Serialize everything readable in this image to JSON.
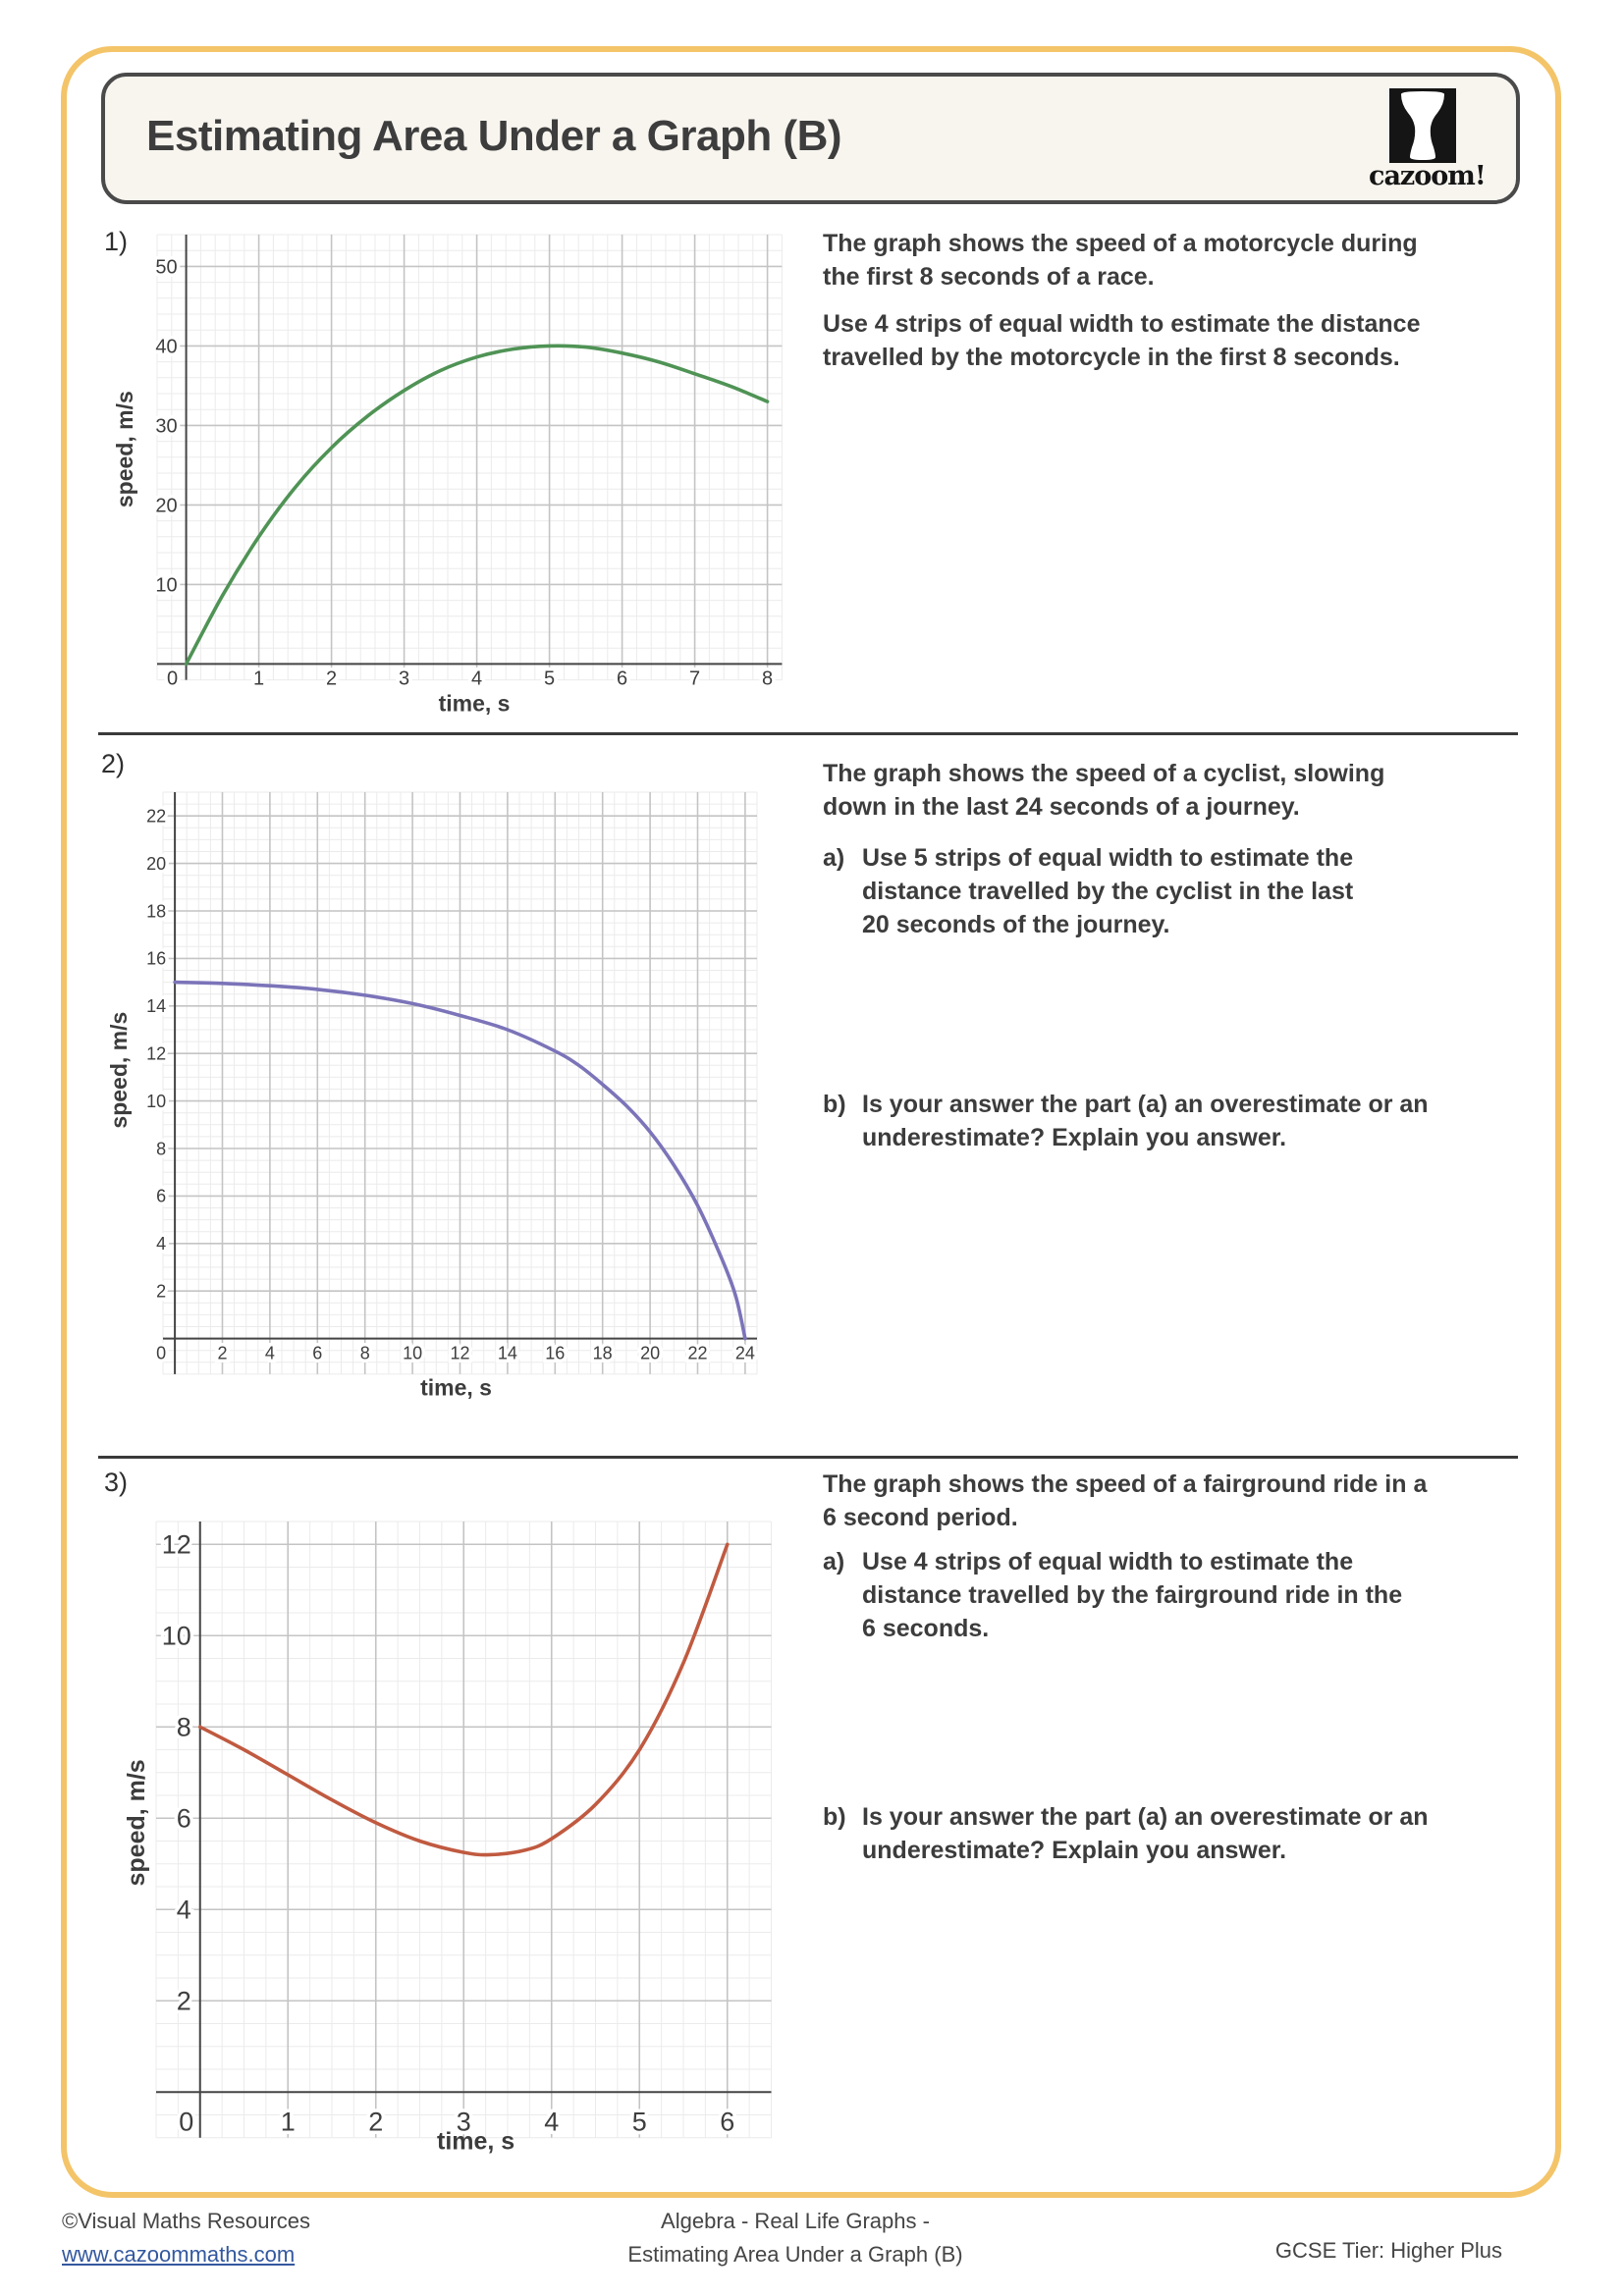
{
  "header": {
    "title": "Estimating Area Under a Graph (B)",
    "logo_text": "cazoom!"
  },
  "questions": [
    {
      "number": "1)",
      "intro": "The graph shows the speed of a motorcycle during\nthe first 8 seconds of a race.",
      "parts": [
        {
          "label": "",
          "text": "Use 4 strips of equal width to estimate the distance\ntravelled by the motorcycle in the first 8 seconds."
        }
      ]
    },
    {
      "number": "2)",
      "intro": "The graph shows the speed of a cyclist, slowing\ndown in the last 24 seconds of a journey.",
      "parts": [
        {
          "label": "a)",
          "text": "Use 5 strips of equal width to estimate the\ndistance travelled by the cyclist in the last\n20 seconds of the journey."
        },
        {
          "label": "b)",
          "text": "Is your answer the part (a) an overestimate or an\nunderestimate? Explain you answer."
        }
      ]
    },
    {
      "number": "3)",
      "intro": "The graph shows the speed of a fairground ride in a\n6 second period.",
      "parts": [
        {
          "label": "a)",
          "text": "Use 4 strips of equal width to estimate the\ndistance travelled by the fairground ride in the\n6 seconds."
        },
        {
          "label": "b)",
          "text": "Is your answer the part (a) an overestimate or an\nunderestimate? Explain you answer."
        }
      ]
    }
  ],
  "footer": {
    "copyright": "©Visual Maths Resources",
    "link": "www.cazoommaths.com",
    "center_line1": "Algebra - Real Life Graphs -",
    "center_line2": "Estimating Area Under a Graph (B)",
    "right": "GCSE Tier: Higher Plus"
  },
  "chart_data": [
    {
      "type": "line",
      "question": 1,
      "xlabel": "time, s",
      "ylabel": "speed, m/s",
      "color": "#4f9355",
      "x_range": [
        -0.4,
        8.2
      ],
      "y_range": [
        -2,
        54
      ],
      "x_ticks": [
        0,
        1,
        2,
        3,
        4,
        5,
        6,
        7,
        8
      ],
      "y_ticks": [
        10,
        20,
        30,
        40,
        50
      ],
      "x_major": 1,
      "x_minor": 0.2,
      "y_major": 10,
      "y_minor": 2,
      "grid": true,
      "points": [
        [
          0,
          0
        ],
        [
          0.5,
          8.6
        ],
        [
          1,
          16
        ],
        [
          1.5,
          22.2
        ],
        [
          2,
          27.2
        ],
        [
          2.5,
          31.2
        ],
        [
          3,
          34.4
        ],
        [
          3.5,
          36.9
        ],
        [
          4,
          38.6
        ],
        [
          4.5,
          39.6
        ],
        [
          5,
          40
        ],
        [
          5.5,
          39.85
        ],
        [
          6,
          39.1
        ],
        [
          6.5,
          38
        ],
        [
          7,
          36.5
        ],
        [
          7.5,
          34.9
        ],
        [
          8,
          33
        ]
      ]
    },
    {
      "type": "line",
      "question": 2,
      "xlabel": "time, s",
      "ylabel": "speed, m/s",
      "color": "#7b74b9",
      "x_range": [
        -0.5,
        24.5
      ],
      "y_range": [
        -1.5,
        23
      ],
      "x_ticks": [
        0,
        2,
        4,
        6,
        8,
        10,
        12,
        14,
        16,
        18,
        20,
        22,
        24
      ],
      "y_ticks": [
        2,
        4,
        6,
        8,
        10,
        12,
        14,
        16,
        18,
        20,
        22
      ],
      "x_major": 2,
      "x_minor": 0.5,
      "y_major": 2,
      "y_minor": 0.5,
      "grid": true,
      "points": [
        [
          0,
          15
        ],
        [
          2,
          14.95
        ],
        [
          4,
          14.85
        ],
        [
          6,
          14.7
        ],
        [
          8,
          14.45
        ],
        [
          10,
          14.1
        ],
        [
          12,
          13.6
        ],
        [
          14,
          13
        ],
        [
          16,
          12.1
        ],
        [
          17,
          11.5
        ],
        [
          18,
          10.7
        ],
        [
          19,
          9.8
        ],
        [
          20,
          8.7
        ],
        [
          21,
          7.3
        ],
        [
          22,
          5.6
        ],
        [
          23,
          3.4
        ],
        [
          23.6,
          1.8
        ],
        [
          24,
          0
        ]
      ]
    },
    {
      "type": "line",
      "question": 3,
      "xlabel": "time, s",
      "ylabel": "speed, m/s",
      "color": "#c05a40",
      "x_range": [
        -0.5,
        6.5
      ],
      "y_range": [
        -1,
        12.5
      ],
      "x_ticks": [
        0,
        1,
        2,
        3,
        4,
        5,
        6
      ],
      "y_ticks": [
        2,
        4,
        6,
        8,
        10,
        12
      ],
      "x_major": 1,
      "x_minor": 0.25,
      "y_major": 2,
      "y_minor": 0.5,
      "grid": true,
      "points": [
        [
          0,
          8
        ],
        [
          0.5,
          7.5
        ],
        [
          1,
          6.95
        ],
        [
          1.5,
          6.4
        ],
        [
          2,
          5.9
        ],
        [
          2.5,
          5.5
        ],
        [
          3,
          5.25
        ],
        [
          3.3,
          5.2
        ],
        [
          3.7,
          5.3
        ],
        [
          4,
          5.55
        ],
        [
          4.5,
          6.3
        ],
        [
          5,
          7.5
        ],
        [
          5.5,
          9.4
        ],
        [
          6,
          12
        ]
      ]
    }
  ]
}
